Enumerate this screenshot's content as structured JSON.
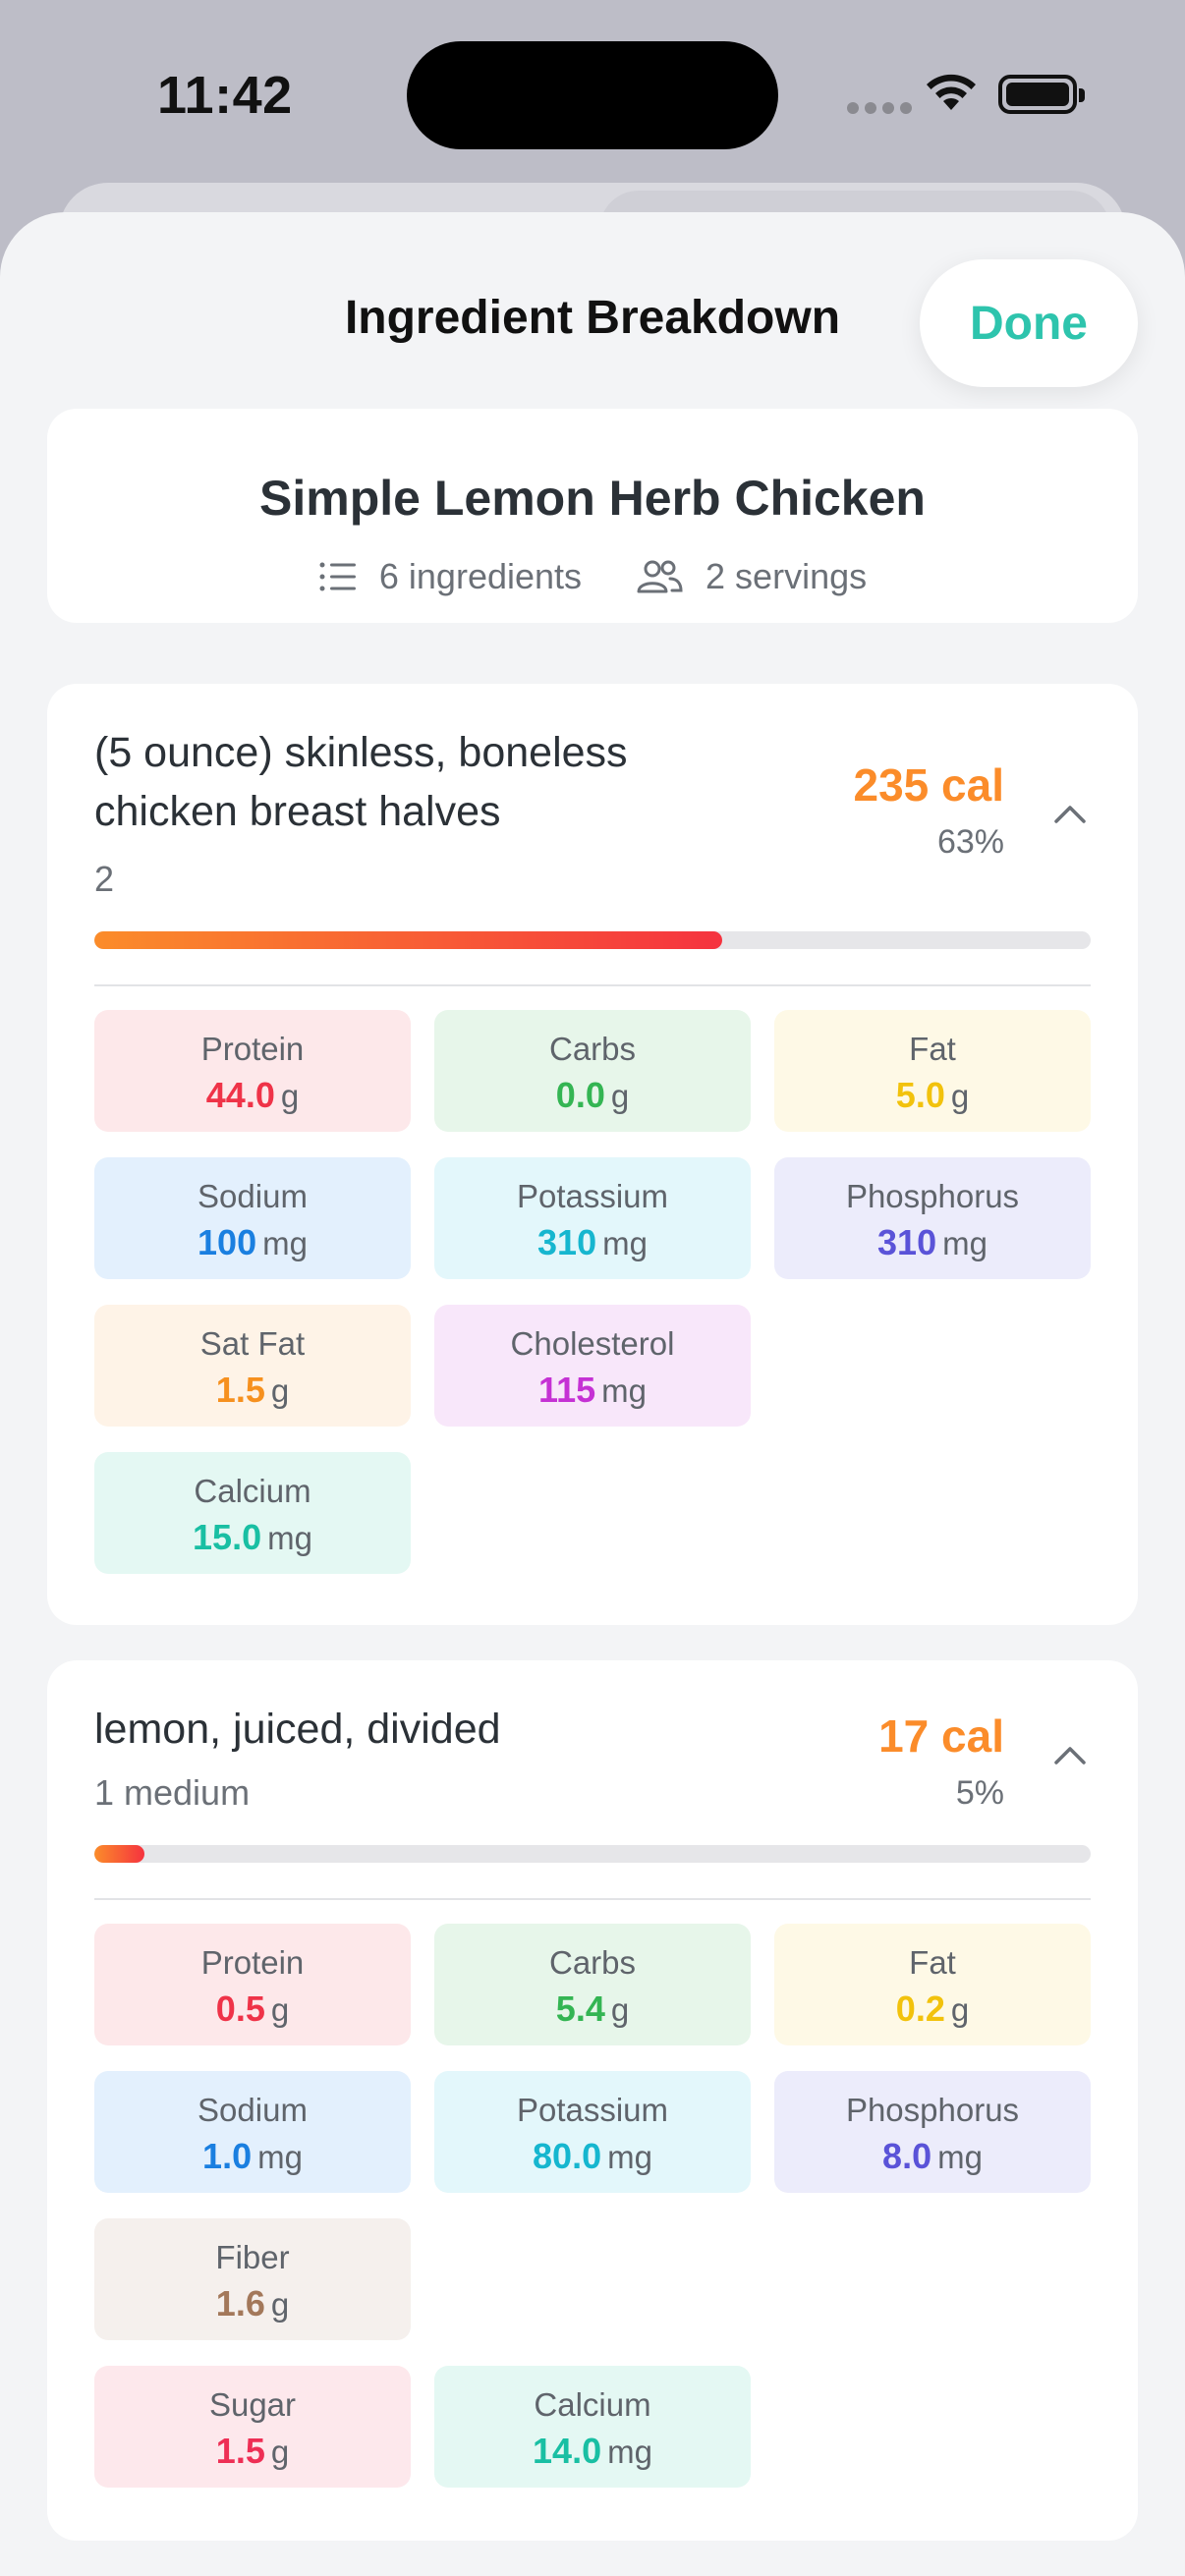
{
  "status": {
    "time": "11:42"
  },
  "sheet": {
    "title": "Ingredient Breakdown",
    "done_label": "Done"
  },
  "recipe": {
    "name": "Simple Lemon Herb Chicken",
    "ingredients_count": "6 ingredients",
    "servings": "2 servings"
  },
  "ingredients": [
    {
      "name": "(5 ounce) skinless, boneless chicken breast halves",
      "qty": "2",
      "cal": "235 cal",
      "pct": "63%",
      "calorie_share": 0.63,
      "nutrients": {
        "protein": {
          "label": "Protein",
          "value": "44.0",
          "unit": "g"
        },
        "carbs": {
          "label": "Carbs",
          "value": "0.0",
          "unit": "g"
        },
        "fat": {
          "label": "Fat",
          "value": "5.0",
          "unit": "g"
        },
        "sodium": {
          "label": "Sodium",
          "value": "100",
          "unit": "mg"
        },
        "potassium": {
          "label": "Potassium",
          "value": "310",
          "unit": "mg"
        },
        "phosphorus": {
          "label": "Phosphorus",
          "value": "310",
          "unit": "mg"
        },
        "satfat": {
          "label": "Sat Fat",
          "value": "1.5",
          "unit": "g"
        },
        "cholesterol": {
          "label": "Cholesterol",
          "value": "115",
          "unit": "mg"
        },
        "calcium": {
          "label": "Calcium",
          "value": "15.0",
          "unit": "mg"
        }
      }
    },
    {
      "name": "lemon, juiced, divided",
      "qty": "1 medium",
      "cal": "17 cal",
      "pct": "5%",
      "calorie_share": 0.05,
      "nutrients": {
        "protein": {
          "label": "Protein",
          "value": "0.5",
          "unit": "g"
        },
        "carbs": {
          "label": "Carbs",
          "value": "5.4",
          "unit": "g"
        },
        "fat": {
          "label": "Fat",
          "value": "0.2",
          "unit": "g"
        },
        "sodium": {
          "label": "Sodium",
          "value": "1.0",
          "unit": "mg"
        },
        "potassium": {
          "label": "Potassium",
          "value": "80.0",
          "unit": "mg"
        },
        "phosphorus": {
          "label": "Phosphorus",
          "value": "8.0",
          "unit": "mg"
        },
        "fiber": {
          "label": "Fiber",
          "value": "1.6",
          "unit": "g"
        },
        "sugar": {
          "label": "Sugar",
          "value": "1.5",
          "unit": "g"
        },
        "calcium": {
          "label": "Calcium",
          "value": "14.0",
          "unit": "mg"
        }
      }
    }
  ]
}
